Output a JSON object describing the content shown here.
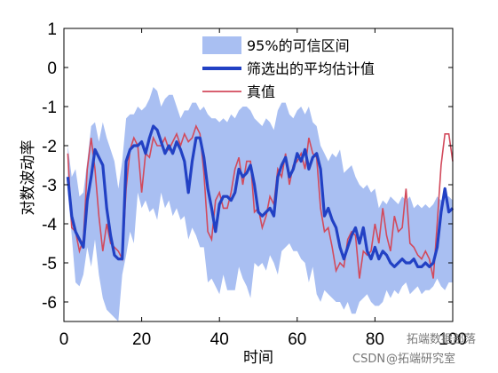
{
  "chart_data": {
    "type": "line",
    "xlabel": "时间",
    "ylabel": "对数波动率",
    "xlim": [
      0,
      100
    ],
    "ylim": [
      -6.5,
      1
    ],
    "xticks": [
      0,
      20,
      40,
      60,
      80,
      100
    ],
    "yticks": [
      1,
      0,
      -1,
      -2,
      -3,
      -4,
      -5,
      -6
    ],
    "tick_labels_x": [
      "0",
      "20",
      "40",
      "60",
      "80",
      "100"
    ],
    "tick_labels_y": [
      "1",
      "0",
      "-1",
      "-2",
      "-3",
      "-4",
      "-5",
      "-6"
    ],
    "grid": false,
    "legend_position": "top-right",
    "legend": [
      {
        "label": "95%的可信区间",
        "kind": "band",
        "color": "#a9bff2"
      },
      {
        "label": "筛选出的平均估计值",
        "kind": "line",
        "color": "#2241c4"
      },
      {
        "label": "真值",
        "kind": "line",
        "color": "#d24a5c"
      }
    ],
    "x": [
      1,
      2,
      3,
      4,
      5,
      6,
      7,
      8,
      9,
      10,
      11,
      12,
      13,
      14,
      15,
      16,
      17,
      18,
      19,
      20,
      21,
      22,
      23,
      24,
      25,
      26,
      27,
      28,
      29,
      30,
      31,
      32,
      33,
      34,
      35,
      36,
      37,
      38,
      39,
      40,
      41,
      42,
      43,
      44,
      45,
      46,
      47,
      48,
      49,
      50,
      51,
      52,
      53,
      54,
      55,
      56,
      57,
      58,
      59,
      60,
      61,
      62,
      63,
      64,
      65,
      66,
      67,
      68,
      69,
      70,
      71,
      72,
      73,
      74,
      75,
      76,
      77,
      78,
      79,
      80,
      81,
      82,
      83,
      84,
      85,
      86,
      87,
      88,
      89,
      90,
      91,
      92,
      93,
      94,
      95,
      96,
      97,
      98,
      99,
      100
    ],
    "band_upper": [
      -2.0,
      -2.8,
      -2.6,
      -3.3,
      -3.2,
      -2.4,
      -1.5,
      -1.4,
      -1.9,
      -1.4,
      -1.8,
      -2.1,
      -2.4,
      -3.1,
      -2.4,
      -1.3,
      -1.2,
      -1.2,
      -1.0,
      -1.1,
      -1.0,
      -0.8,
      -0.5,
      -0.6,
      -1.0,
      -0.8,
      -0.7,
      -0.7,
      -1.0,
      -1.3,
      -1.1,
      -1.1,
      -0.9,
      -0.9,
      -1.1,
      -1.0,
      -1.2,
      -1.3,
      -1.3,
      -1.4,
      -1.3,
      -1.4,
      -1.2,
      -1.3,
      -1.1,
      -1.0,
      -1.0,
      -1.1,
      -1.3,
      -1.4,
      -1.5,
      -1.3,
      -1.4,
      -1.6,
      -1.1,
      -0.9,
      -0.9,
      -1.2,
      -1.3,
      -1.1,
      -1.0,
      -1.2,
      -1.0,
      -1.4,
      -1.5,
      -2.0,
      -2.2,
      -2.4,
      -2.2,
      -2.3,
      -2.1,
      -2.7,
      -2.6,
      -2.5,
      -2.8,
      -3.0,
      -3.1,
      -3.0,
      -3.2,
      -3.1,
      -3.6,
      -3.4,
      -3.5,
      -3.3,
      -3.4,
      -3.5,
      -3.3,
      -3.4,
      -3.3,
      -3.6,
      -3.5,
      -3.6,
      -3.5,
      -3.6,
      -3.5,
      -3.3,
      -3.4,
      -3.3,
      -3.3,
      -3.4
    ],
    "band_lower": [
      -3.2,
      -4.3,
      -5.5,
      -5.6,
      -5.3,
      -4.6,
      -5.1,
      -4.4,
      -5.3,
      -5.9,
      -6.2,
      -6.3,
      -6.4,
      -6.5,
      -5.3,
      -4.8,
      -4.2,
      -4.5,
      -3.2,
      -3.6,
      -3.4,
      -3.7,
      -3.6,
      -3.9,
      -3.2,
      -3.6,
      -3.4,
      -3.8,
      -3.6,
      -3.9,
      -3.8,
      -4.4,
      -4.1,
      -4.3,
      -4.6,
      -4.6,
      -5.5,
      -5.4,
      -5.6,
      -5.8,
      -5.3,
      -5.7,
      -5.7,
      -5.7,
      -5.1,
      -5.4,
      -5.6,
      -5.9,
      -5.0,
      -5.1,
      -5.0,
      -5.2,
      -4.8,
      -5.0,
      -5.3,
      -4.7,
      -4.6,
      -4.5,
      -4.7,
      -4.7,
      -4.9,
      -5.0,
      -5.5,
      -5.1,
      -5.8,
      -6.0,
      -5.7,
      -5.8,
      -5.9,
      -6.0,
      -6.0,
      -6.2,
      -6.0,
      -6.3,
      -6.3,
      -6.0,
      -5.9,
      -5.8,
      -6.0,
      -6.1,
      -6.1,
      -6.0,
      -5.7,
      -5.9,
      -5.7,
      -5.8,
      -5.6,
      -5.5,
      -5.8,
      -5.7,
      -5.6,
      -5.8,
      -5.7,
      -5.7,
      -5.6,
      -5.4,
      -5.6,
      -5.7,
      -5.5,
      -5.5
    ],
    "series": [
      {
        "name": "筛选出的平均估计值",
        "color": "#2241c4",
        "values": [
          -2.8,
          -3.8,
          -4.2,
          -4.4,
          -4.6,
          -3.4,
          -2.8,
          -2.1,
          -2.3,
          -2.5,
          -3.6,
          -4.3,
          -4.8,
          -4.9,
          -4.9,
          -2.4,
          -2.1,
          -2.0,
          -2.0,
          -1.9,
          -2.2,
          -1.8,
          -1.5,
          -1.6,
          -1.9,
          -2.2,
          -2.0,
          -2.2,
          -1.9,
          -2.1,
          -2.4,
          -3.2,
          -2.4,
          -1.8,
          -1.8,
          -2.3,
          -3.1,
          -3.6,
          -4.2,
          -3.5,
          -3.3,
          -3.3,
          -3.4,
          -3.2,
          -2.6,
          -2.8,
          -2.7,
          -2.5,
          -3.0,
          -3.7,
          -3.8,
          -3.7,
          -3.6,
          -3.8,
          -2.8,
          -2.5,
          -2.3,
          -2.8,
          -2.6,
          -2.2,
          -2.4,
          -2.1,
          -2.6,
          -2.3,
          -2.2,
          -2.6,
          -3.8,
          -3.6,
          -3.9,
          -4.1,
          -4.6,
          -4.9,
          -4.6,
          -4.3,
          -4.1,
          -4.5,
          -4.1,
          -4.7,
          -4.9,
          -4.6,
          -4.9,
          -4.7,
          -4.8,
          -5.0,
          -5.1,
          -5.0,
          -4.9,
          -5.0,
          -5.0,
          -4.9,
          -5.1,
          -5.1,
          -5.0,
          -5.1,
          -5.0,
          -4.6,
          -3.7,
          -3.1,
          -3.7,
          -3.6
        ]
      },
      {
        "name": "真值",
        "color": "#d24a5c",
        "values": [
          -2.2,
          -4.1,
          -4.2,
          -4.7,
          -4.4,
          -2.6,
          -1.8,
          -2.6,
          -3.8,
          -4.7,
          -4.0,
          -4.5,
          -4.6,
          -4.7,
          -4.9,
          -3.1,
          -2.1,
          -1.8,
          -2.0,
          -3.2,
          -2.2,
          -2.3,
          -1.8,
          -2.0,
          -2.0,
          -1.8,
          -2.1,
          -1.9,
          -1.7,
          -2.0,
          -1.7,
          -1.9,
          -1.8,
          -1.5,
          -1.7,
          -2.7,
          -4.2,
          -4.4,
          -3.4,
          -3.2,
          -3.6,
          -3.6,
          -3.2,
          -2.6,
          -2.3,
          -3.0,
          -2.4,
          -2.4,
          -3.7,
          -3.6,
          -4.1,
          -3.8,
          -3.3,
          -3.5,
          -2.6,
          -2.8,
          -2.2,
          -3.0,
          -2.5,
          -2.4,
          -2.2,
          -2.6,
          -1.8,
          -2.2,
          -2.3,
          -3.6,
          -4.2,
          -4.1,
          -4.6,
          -5.2,
          -5.0,
          -5.1,
          -4.4,
          -4.2,
          -4.3,
          -5.4,
          -4.7,
          -4.8,
          -4.7,
          -4.0,
          -4.5,
          -3.6,
          -4.3,
          -4.7,
          -3.8,
          -4.2,
          -4.1,
          -3.1,
          -4.5,
          -4.6,
          -4.8,
          -4.9,
          -4.7,
          -4.9,
          -5.4,
          -4.0,
          -2.5,
          -1.7,
          -1.7,
          -2.4
        ]
      }
    ]
  },
  "watermark": {
    "line1": "CSDN",
    "line2": "@拓端研究室",
    "line3": "拓端数据部落"
  }
}
